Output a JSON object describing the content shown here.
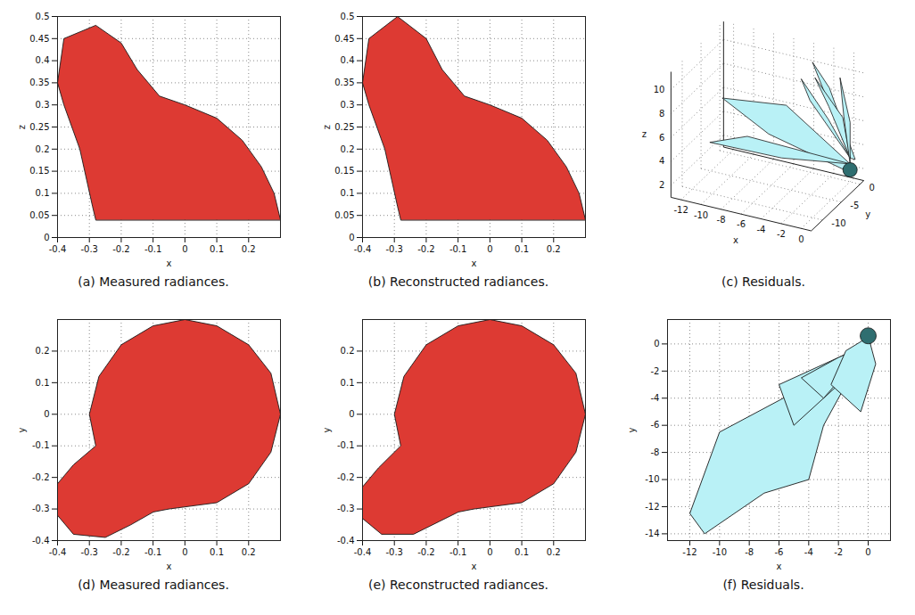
{
  "chart_data": [
    {
      "type": "polygon",
      "title": "(a) Measured radiances.",
      "xlabel": "x",
      "ylabel": "z",
      "xlim": [
        -0.4,
        0.3
      ],
      "xticks": [
        -0.4,
        -0.3,
        -0.2,
        -0.1,
        0,
        0.1,
        0.2
      ],
      "ylim": [
        0,
        0.5
      ],
      "yticks": [
        0,
        0.05,
        0.1,
        0.15,
        0.2,
        0.25,
        0.3,
        0.35,
        0.4,
        0.45,
        0.5
      ],
      "grid": true,
      "color": "#dd3a33",
      "polygons": [
        {
          "points": [
            [
              -0.28,
              0.04
            ],
            [
              -0.29,
              0.07
            ],
            [
              -0.33,
              0.2
            ],
            [
              -0.38,
              0.3
            ],
            [
              -0.4,
              0.35
            ],
            [
              -0.38,
              0.45
            ],
            [
              -0.28,
              0.48
            ],
            [
              -0.2,
              0.44
            ],
            [
              -0.15,
              0.38
            ],
            [
              -0.08,
              0.32
            ],
            [
              0,
              0.3
            ],
            [
              0.1,
              0.27
            ],
            [
              0.18,
              0.22
            ],
            [
              0.24,
              0.16
            ],
            [
              0.28,
              0.1
            ],
            [
              0.3,
              0.04
            ]
          ]
        }
      ]
    },
    {
      "type": "polygon",
      "title": "(b) Reconstructed radiances.",
      "xlabel": "x",
      "ylabel": "z",
      "xlim": [
        -0.4,
        0.3
      ],
      "xticks": [
        -0.4,
        -0.3,
        -0.2,
        -0.1,
        0,
        0.1,
        0.2
      ],
      "ylim": [
        0,
        0.5
      ],
      "yticks": [
        0,
        0.05,
        0.1,
        0.15,
        0.2,
        0.25,
        0.3,
        0.35,
        0.4,
        0.45,
        0.5
      ],
      "grid": true,
      "color": "#dd3a33",
      "polygons": [
        {
          "points": [
            [
              -0.28,
              0.04
            ],
            [
              -0.29,
              0.07
            ],
            [
              -0.33,
              0.2
            ],
            [
              -0.38,
              0.3
            ],
            [
              -0.4,
              0.35
            ],
            [
              -0.38,
              0.45
            ],
            [
              -0.29,
              0.5
            ],
            [
              -0.2,
              0.45
            ],
            [
              -0.15,
              0.38
            ],
            [
              -0.08,
              0.32
            ],
            [
              0,
              0.3
            ],
            [
              0.1,
              0.27
            ],
            [
              0.18,
              0.22
            ],
            [
              0.24,
              0.16
            ],
            [
              0.28,
              0.1
            ],
            [
              0.3,
              0.04
            ]
          ]
        }
      ]
    },
    {
      "type": "polygon3d",
      "title": "(c) Residuals.",
      "xlabel": "x",
      "ylabel": "y",
      "zlabel": "z",
      "xlim": [
        -13,
        1
      ],
      "xticks": [
        -12,
        -10,
        -8,
        -6,
        -4,
        -2,
        0
      ],
      "ylim": [
        -13,
        1
      ],
      "yticks": [
        -10,
        -5,
        0
      ],
      "zlim": [
        1,
        11.5
      ],
      "zticks": [
        2,
        4,
        6,
        8,
        10
      ],
      "grid": true,
      "color": "#b9f1f6",
      "sphere_center": [
        0,
        0,
        2
      ],
      "sphere_color": "#2f6e70",
      "polygons": [
        {
          "points": [
            [
              0,
              0,
              2.5
            ],
            [
              -6,
              -1,
              6.5
            ],
            [
              -12,
              -2,
              6.2
            ],
            [
              -7,
              -3,
              4.5
            ],
            [
              0,
              -0.5,
              2
            ]
          ]
        },
        {
          "points": [
            [
              0,
              0,
              2.5
            ],
            [
              -8,
              -6,
              5
            ],
            [
              -11,
              -8,
              4.5
            ],
            [
              -5,
              -5,
              3.5
            ]
          ]
        },
        {
          "points": [
            [
              0,
              0,
              3
            ],
            [
              -2,
              -1,
              8
            ],
            [
              -3,
              -2,
              11
            ],
            [
              -1.5,
              -1.5,
              9
            ],
            [
              0.5,
              0,
              3
            ]
          ]
        },
        {
          "points": [
            [
              0,
              0,
              3
            ],
            [
              -1,
              -3,
              8
            ],
            [
              -2,
              -4,
              10.5
            ],
            [
              0,
              -2,
              7
            ]
          ]
        },
        {
          "points": [
            [
              0,
              0,
              3
            ],
            [
              -4,
              0,
              7
            ],
            [
              -4.5,
              -1,
              9
            ],
            [
              -2,
              -0.5,
              6
            ]
          ]
        },
        {
          "points": [
            [
              0,
              0,
              2.5
            ],
            [
              -1,
              1,
              6
            ],
            [
              -1,
              0,
              9.5
            ],
            [
              0,
              0,
              6
            ]
          ]
        }
      ]
    },
    {
      "type": "polygon",
      "title": "(d) Measured radiances.",
      "xlabel": "x",
      "ylabel": "y",
      "xlim": [
        -0.4,
        0.3
      ],
      "xticks": [
        -0.4,
        -0.3,
        -0.2,
        -0.1,
        0,
        0.1,
        0.2
      ],
      "ylim": [
        -0.4,
        0.3
      ],
      "yticks": [
        -0.4,
        -0.3,
        -0.2,
        -0.1,
        0,
        0.1,
        0.2
      ],
      "grid": true,
      "color": "#dd3a33",
      "polygons": [
        {
          "points": [
            [
              -0.05,
              -0.3
            ],
            [
              0.1,
              -0.28
            ],
            [
              0.2,
              -0.22
            ],
            [
              0.27,
              -0.12
            ],
            [
              0.3,
              0
            ],
            [
              0.27,
              0.13
            ],
            [
              0.2,
              0.22
            ],
            [
              0.1,
              0.28
            ],
            [
              0,
              0.3
            ],
            [
              -0.1,
              0.28
            ],
            [
              -0.2,
              0.22
            ],
            [
              -0.27,
              0.12
            ],
            [
              -0.3,
              0
            ],
            [
              -0.28,
              -0.1
            ],
            [
              -0.35,
              -0.16
            ],
            [
              -0.4,
              -0.22
            ],
            [
              -0.4,
              -0.32
            ],
            [
              -0.35,
              -0.38
            ],
            [
              -0.25,
              -0.39
            ],
            [
              -0.17,
              -0.35
            ],
            [
              -0.1,
              -0.31
            ]
          ]
        }
      ]
    },
    {
      "type": "polygon",
      "title": "(e) Reconstructed radiances.",
      "xlabel": "x",
      "ylabel": "y",
      "xlim": [
        -0.4,
        0.3
      ],
      "xticks": [
        -0.4,
        -0.3,
        -0.2,
        -0.1,
        0,
        0.1,
        0.2
      ],
      "ylim": [
        -0.4,
        0.3
      ],
      "yticks": [
        -0.4,
        -0.3,
        -0.2,
        -0.1,
        0,
        0.1,
        0.2
      ],
      "grid": true,
      "color": "#dd3a33",
      "polygons": [
        {
          "points": [
            [
              -0.05,
              -0.3
            ],
            [
              0.1,
              -0.28
            ],
            [
              0.2,
              -0.22
            ],
            [
              0.27,
              -0.12
            ],
            [
              0.3,
              0
            ],
            [
              0.27,
              0.13
            ],
            [
              0.2,
              0.22
            ],
            [
              0.1,
              0.28
            ],
            [
              0,
              0.3
            ],
            [
              -0.1,
              0.28
            ],
            [
              -0.2,
              0.22
            ],
            [
              -0.27,
              0.12
            ],
            [
              -0.3,
              0
            ],
            [
              -0.28,
              -0.1
            ],
            [
              -0.35,
              -0.17
            ],
            [
              -0.4,
              -0.23
            ],
            [
              -0.4,
              -0.33
            ],
            [
              -0.34,
              -0.38
            ],
            [
              -0.24,
              -0.38
            ],
            [
              -0.16,
              -0.34
            ],
            [
              -0.1,
              -0.31
            ]
          ]
        }
      ]
    },
    {
      "type": "polygon",
      "title": "(f) Residuals.",
      "xlabel": "x",
      "ylabel": "y",
      "xlim": [
        -13.5,
        1.5
      ],
      "xticks": [
        -12,
        -10,
        -8,
        -6,
        -4,
        -2,
        0
      ],
      "ylim": [
        -14.5,
        1.8
      ],
      "yticks": [
        -14,
        -12,
        -10,
        -8,
        -6,
        -4,
        -2,
        0
      ],
      "grid": true,
      "color": "#b9f1f6",
      "sphere_center": [
        0,
        0.6
      ],
      "sphere_color": "#2f6e70",
      "polygons": [
        {
          "points": [
            [
              0,
              0
            ],
            [
              -4,
              -3
            ],
            [
              -10,
              -6.5
            ],
            [
              -12,
              -12.5
            ],
            [
              -11,
              -14
            ],
            [
              -7,
              -11
            ],
            [
              -4,
              -10
            ],
            [
              -3,
              -6
            ],
            [
              -1,
              -2
            ]
          ]
        },
        {
          "points": [
            [
              0,
              0
            ],
            [
              -6,
              -3
            ],
            [
              -5,
              -6
            ],
            [
              -2,
              -3
            ]
          ]
        },
        {
          "points": [
            [
              0,
              0
            ],
            [
              -2,
              -1
            ],
            [
              -4.5,
              -2.5
            ],
            [
              -3,
              -4
            ],
            [
              -1,
              -1.5
            ]
          ]
        },
        {
          "points": [
            [
              0,
              0.5
            ],
            [
              -1.5,
              -0.5
            ],
            [
              -2.5,
              -3
            ],
            [
              -0.5,
              -5
            ],
            [
              0.5,
              -1.5
            ]
          ]
        }
      ]
    }
  ]
}
